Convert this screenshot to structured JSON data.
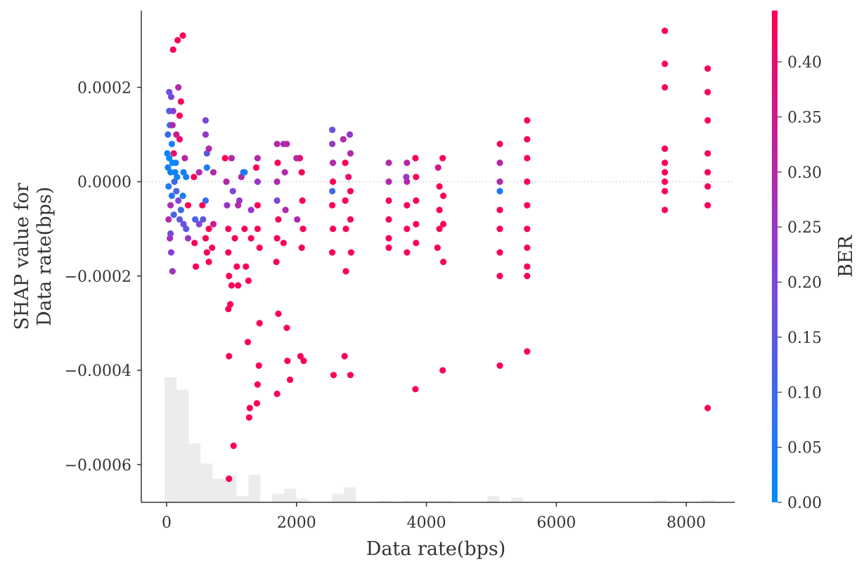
{
  "chart_data": {
    "type": "scatter",
    "subtype": "shap-dependence",
    "xlabel": "Data rate(bps)",
    "ylabel": [
      "SHAP value for",
      "Data rate(bps)"
    ],
    "colorbar_label": "BER",
    "xlim": [
      -390,
      8745
    ],
    "ylim": [
      -0.00068,
      0.000363
    ],
    "xticks": [
      0,
      2000,
      4000,
      6000,
      8000
    ],
    "xtick_labels": [
      "0",
      "2000",
      "4000",
      "6000",
      "8000"
    ],
    "yticks": [
      0.0002,
      0.0,
      -0.0002,
      -0.0004,
      -0.0006
    ],
    "ytick_labels": [
      "0.0002",
      "0.0000",
      "−0.0002",
      "−0.0004",
      "−0.0006"
    ],
    "colorbar_range": [
      0.0,
      0.4466
    ],
    "colorbar_ticks": [
      0.0,
      0.05,
      0.1,
      0.15,
      0.2,
      0.25,
      0.3,
      0.35,
      0.4
    ],
    "colorbar_tick_labels": [
      "0.00",
      "0.05",
      "0.10",
      "0.15",
      "0.20",
      "0.25",
      "0.30",
      "0.35",
      "0.40"
    ],
    "colormap": {
      "low": "#008bfb",
      "mid": "#8a3fd6",
      "high": "#ff0052"
    },
    "zero_line": "dotted",
    "grid": false,
    "histogram": {
      "bin_start": -30,
      "bin_width": 184,
      "relative_counts": [
        1.0,
        0.9,
        0.47,
        0.31,
        0.19,
        0.22,
        0.05,
        0.22,
        0,
        0.07,
        0.11,
        0.03,
        0,
        0,
        0.07,
        0.12,
        0,
        0,
        0.01,
        0,
        0.01,
        0.01,
        0.01,
        0.01,
        0,
        0,
        0,
        0.05,
        0,
        0.04,
        0,
        0,
        0,
        0,
        0,
        0,
        0,
        0,
        0,
        0,
        0,
        0.02,
        0,
        0,
        0,
        0.02
      ]
    },
    "points": [
      [
        20,
        3e-05,
        0.02
      ],
      [
        40,
        5e-05,
        0.01
      ],
      [
        60,
        2e-05,
        0.03
      ],
      [
        30,
        -1e-05,
        0.05
      ],
      [
        80,
        8e-05,
        0.04
      ],
      [
        50,
        0.00012,
        0.08
      ],
      [
        70,
        0.00018,
        0.2
      ],
      [
        40,
        0.00019,
        0.18
      ],
      [
        100,
        0.00015,
        0.25
      ],
      [
        60,
        -5e-05,
        0.28
      ],
      [
        30,
        -8e-05,
        0.3
      ],
      [
        50,
        -0.00012,
        0.28
      ],
      [
        70,
        -0.00015,
        0.22
      ],
      [
        90,
        -0.00019,
        0.27
      ],
      [
        60,
        -0.00011,
        0.2
      ],
      [
        120,
        0.0,
        0.1
      ],
      [
        140,
        4e-05,
        0.05
      ],
      [
        150,
        -2e-05,
        0.12
      ],
      [
        110,
        6e-05,
        0.4
      ],
      [
        100,
        0.00028,
        0.44
      ],
      [
        170,
        0.0003,
        0.44
      ],
      [
        250,
        0.00031,
        0.44
      ],
      [
        180,
        0.0002,
        0.3
      ],
      [
        200,
        0.00014,
        0.44
      ],
      [
        220,
        0.00017,
        0.44
      ],
      [
        200,
        9e-05,
        0.4
      ],
      [
        150,
        0.0001,
        0.35
      ],
      [
        180,
        -4e-05,
        0.2
      ],
      [
        200,
        -8e-05,
        0.15
      ],
      [
        220,
        -6e-05,
        0.1
      ],
      [
        250,
        -3e-05,
        0.05
      ],
      [
        260,
        2e-05,
        0.03
      ],
      [
        280,
        5e-05,
        0.3
      ],
      [
        300,
        -0.0001,
        0.15
      ],
      [
        260,
        -9e-05,
        0.18
      ],
      [
        330,
        -5e-05,
        0.44
      ],
      [
        330,
        -0.00012,
        0.25
      ],
      [
        300,
        1e-05,
        0.04
      ],
      [
        10,
        6e-05,
        0.02
      ],
      [
        90,
        4e-05,
        0.01
      ],
      [
        130,
        2e-05,
        0.02
      ],
      [
        20,
        0.0001,
        0.1
      ],
      [
        110,
        -7e-05,
        0.12
      ],
      [
        160,
        1e-05,
        0.03
      ],
      [
        80,
        -3e-05,
        0.06
      ],
      [
        40,
        0.00015,
        0.15
      ],
      [
        90,
        0.00012,
        0.3
      ],
      [
        420,
        1e-05,
        0.44
      ],
      [
        430,
        -0.00013,
        0.44
      ],
      [
        450,
        -0.00018,
        0.44
      ],
      [
        440,
        -8e-05,
        0.12
      ],
      [
        500,
        2e-05,
        0.3
      ],
      [
        550,
        -5e-05,
        0.44
      ],
      [
        600,
        0.00013,
        0.2
      ],
      [
        600,
        0.0001,
        0.25
      ],
      [
        620,
        6e-05,
        0.15
      ],
      [
        620,
        3e-05,
        0.05
      ],
      [
        600,
        -4e-05,
        0.1
      ],
      [
        600,
        -0.00012,
        0.44
      ],
      [
        620,
        -0.00015,
        0.44
      ],
      [
        650,
        -0.00017,
        0.44
      ],
      [
        650,
        7e-05,
        0.3
      ],
      [
        650,
        -0.0001,
        0.44
      ],
      [
        560,
        -8e-05,
        0.15
      ],
      [
        500,
        -9e-05,
        0.2
      ],
      [
        700,
        -0.00014,
        0.44
      ],
      [
        720,
        -9e-05,
        0.35
      ],
      [
        720,
        2e-05,
        0.3
      ],
      [
        900,
        5e-05,
        0.44
      ],
      [
        920,
        0.0,
        0.3
      ],
      [
        930,
        -5e-05,
        0.25
      ],
      [
        950,
        -0.0001,
        0.44
      ],
      [
        950,
        -0.00015,
        0.44
      ],
      [
        960,
        -0.0002,
        0.44
      ],
      [
        950,
        -0.00027,
        0.44
      ],
      [
        980,
        -0.00026,
        0.44
      ],
      [
        960,
        -0.00037,
        0.44
      ],
      [
        1000,
        -0.00022,
        0.44
      ],
      [
        960,
        -0.00063,
        0.44
      ],
      [
        1030,
        -0.00056,
        0.44
      ],
      [
        1000,
        5e-05,
        0.3
      ],
      [
        1020,
        -2e-05,
        0.2
      ],
      [
        1050,
        -0.00012,
        0.44
      ],
      [
        1080,
        -0.00018,
        0.44
      ],
      [
        1100,
        -0.00022,
        0.44
      ],
      [
        1120,
        -4e-05,
        0.25
      ],
      [
        1100,
        -5e-05,
        0.3
      ],
      [
        1150,
        1e-05,
        0.3
      ],
      [
        1180,
        2e-05,
        0.1
      ],
      [
        1200,
        2e-05,
        0.05
      ],
      [
        1200,
        -0.0001,
        0.44
      ],
      [
        1220,
        -0.00018,
        0.44
      ],
      [
        1250,
        -0.00034,
        0.44
      ],
      [
        1280,
        -0.00048,
        0.44
      ],
      [
        1270,
        -0.0005,
        0.44
      ],
      [
        1260,
        -0.00021,
        0.44
      ],
      [
        1300,
        -6e-05,
        0.25
      ],
      [
        1300,
        -0.00012,
        0.44
      ],
      [
        1400,
        5e-05,
        0.3
      ],
      [
        1400,
        0.0,
        0.25
      ],
      [
        1400,
        -5e-05,
        0.44
      ],
      [
        1400,
        -0.0001,
        0.44
      ],
      [
        1430,
        -0.00014,
        0.44
      ],
      [
        1420,
        -0.00039,
        0.44
      ],
      [
        1400,
        -0.00043,
        0.44
      ],
      [
        1390,
        -0.00047,
        0.44
      ],
      [
        1430,
        -0.0003,
        0.44
      ],
      [
        1380,
        3e-05,
        0.44
      ],
      [
        1700,
        8e-05,
        0.3
      ],
      [
        1710,
        4e-05,
        0.44
      ],
      [
        1700,
        0.0,
        0.3
      ],
      [
        1700,
        -4e-05,
        0.2
      ],
      [
        1720,
        -8e-05,
        0.44
      ],
      [
        1700,
        -0.00012,
        0.44
      ],
      [
        1690,
        -0.00017,
        0.44
      ],
      [
        1720,
        -0.00028,
        0.44
      ],
      [
        1700,
        -0.00045,
        0.44
      ],
      [
        1800,
        8e-05,
        0.28
      ],
      [
        1820,
        2e-05,
        0.3
      ],
      [
        1830,
        -6e-05,
        0.3
      ],
      [
        1800,
        -0.00013,
        0.44
      ],
      [
        1850,
        -0.00031,
        0.44
      ],
      [
        1860,
        -0.00038,
        0.44
      ],
      [
        1900,
        -0.00042,
        0.44
      ],
      [
        1850,
        8e-05,
        0.3
      ],
      [
        2050,
        5e-05,
        0.44
      ],
      [
        2080,
        2e-05,
        0.44
      ],
      [
        2090,
        -4e-05,
        0.44
      ],
      [
        2100,
        -0.0001,
        0.44
      ],
      [
        2080,
        -0.00014,
        0.44
      ],
      [
        2060,
        -0.00037,
        0.44
      ],
      [
        2110,
        -0.00038,
        0.44
      ],
      [
        2000,
        5e-05,
        0.3
      ],
      [
        2010,
        -8e-05,
        0.3
      ],
      [
        2550,
        0.00011,
        0.18
      ],
      [
        2550,
        8e-05,
        0.25
      ],
      [
        2560,
        4e-05,
        0.3
      ],
      [
        2560,
        0.0,
        0.44
      ],
      [
        2550,
        -5e-05,
        0.44
      ],
      [
        2560,
        -0.0001,
        0.44
      ],
      [
        2550,
        -0.00015,
        0.44
      ],
      [
        2550,
        -2e-05,
        0.1
      ],
      [
        2570,
        -0.00041,
        0.44
      ],
      [
        2720,
        9e-05,
        0.3
      ],
      [
        2750,
        4e-05,
        0.44
      ],
      [
        2750,
        -4e-05,
        0.44
      ],
      [
        2760,
        -0.0001,
        0.44
      ],
      [
        2760,
        -0.00019,
        0.44
      ],
      [
        2740,
        -0.00037,
        0.44
      ],
      [
        2820,
        0.0001,
        0.25
      ],
      [
        2830,
        6e-05,
        0.3
      ],
      [
        2830,
        -2e-05,
        0.44
      ],
      [
        2830,
        -8e-05,
        0.44
      ],
      [
        2840,
        -0.00015,
        0.44
      ],
      [
        2830,
        -0.00041,
        0.44
      ],
      [
        2800,
        1e-05,
        0.4
      ],
      [
        3420,
        4e-05,
        0.3
      ],
      [
        3420,
        0.0,
        0.3
      ],
      [
        3420,
        -4e-05,
        0.44
      ],
      [
        3420,
        -8e-05,
        0.44
      ],
      [
        3420,
        -0.00012,
        0.44
      ],
      [
        3420,
        -0.00014,
        0.44
      ],
      [
        3700,
        4e-05,
        0.3
      ],
      [
        3700,
        0.0,
        0.3
      ],
      [
        3700,
        -5e-05,
        0.44
      ],
      [
        3700,
        -0.0001,
        0.44
      ],
      [
        3700,
        -0.00015,
        0.44
      ],
      [
        3690,
        1e-05,
        0.25
      ],
      [
        3830,
        5e-05,
        0.44
      ],
      [
        3840,
        1e-05,
        0.44
      ],
      [
        3840,
        -4e-05,
        0.44
      ],
      [
        3840,
        -9e-05,
        0.44
      ],
      [
        3840,
        -0.00013,
        0.44
      ],
      [
        3830,
        -0.00044,
        0.44
      ],
      [
        4180,
        3e-05,
        0.35
      ],
      [
        4200,
        -1e-05,
        0.44
      ],
      [
        4200,
        -6e-05,
        0.44
      ],
      [
        4200,
        -0.0001,
        0.44
      ],
      [
        4170,
        -0.00014,
        0.44
      ],
      [
        4250,
        5e-05,
        0.44
      ],
      [
        4260,
        -3e-05,
        0.44
      ],
      [
        4260,
        -9e-05,
        0.44
      ],
      [
        4260,
        -0.00017,
        0.44
      ],
      [
        4250,
        -0.0004,
        0.44
      ],
      [
        5130,
        8e-05,
        0.44
      ],
      [
        5130,
        4e-05,
        0.3
      ],
      [
        5130,
        0.0,
        0.3
      ],
      [
        5130,
        -2e-05,
        0.05
      ],
      [
        5130,
        -6e-05,
        0.44
      ],
      [
        5130,
        -0.0001,
        0.44
      ],
      [
        5130,
        -0.00015,
        0.44
      ],
      [
        5130,
        -0.0002,
        0.44
      ],
      [
        5130,
        -0.00039,
        0.44
      ],
      [
        5550,
        0.00013,
        0.44
      ],
      [
        5550,
        9e-05,
        0.44
      ],
      [
        5550,
        5e-05,
        0.44
      ],
      [
        5550,
        0.0,
        0.44
      ],
      [
        5550,
        -5e-05,
        0.44
      ],
      [
        5550,
        -0.0001,
        0.44
      ],
      [
        5550,
        -0.00014,
        0.44
      ],
      [
        5550,
        -0.00018,
        0.44
      ],
      [
        5550,
        -0.0002,
        0.44
      ],
      [
        5550,
        -0.00036,
        0.44
      ],
      [
        7670,
        0.00032,
        0.44
      ],
      [
        7670,
        0.00025,
        0.44
      ],
      [
        7670,
        0.0002,
        0.44
      ],
      [
        7670,
        7e-05,
        0.44
      ],
      [
        7670,
        4e-05,
        0.44
      ],
      [
        7670,
        2e-05,
        0.44
      ],
      [
        7670,
        0.0,
        0.44
      ],
      [
        7670,
        -2e-05,
        0.44
      ],
      [
        7670,
        -6e-05,
        0.44
      ],
      [
        8330,
        0.00024,
        0.44
      ],
      [
        8330,
        0.00019,
        0.44
      ],
      [
        8330,
        0.00013,
        0.44
      ],
      [
        8330,
        6e-05,
        0.44
      ],
      [
        8330,
        2e-05,
        0.44
      ],
      [
        8330,
        -1e-05,
        0.44
      ],
      [
        8330,
        -5e-05,
        0.44
      ],
      [
        8330,
        -0.00048,
        0.44
      ]
    ]
  }
}
